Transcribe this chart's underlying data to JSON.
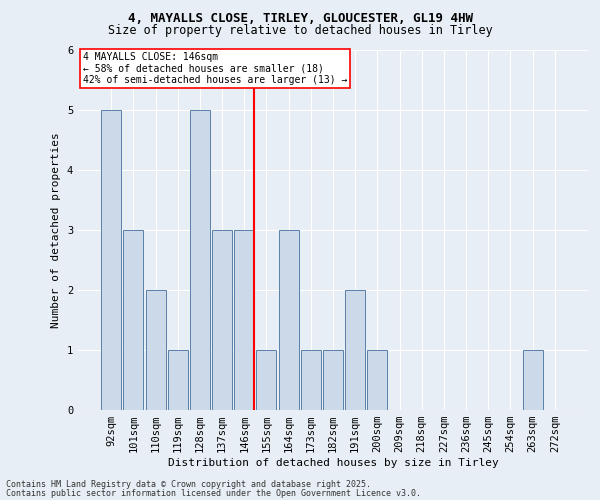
{
  "title": "4, MAYALLS CLOSE, TIRLEY, GLOUCESTER, GL19 4HW",
  "subtitle": "Size of property relative to detached houses in Tirley",
  "xlabel": "Distribution of detached houses by size in Tirley",
  "ylabel": "Number of detached properties",
  "footnote1": "Contains HM Land Registry data © Crown copyright and database right 2025.",
  "footnote2": "Contains public sector information licensed under the Open Government Licence v3.0.",
  "categories": [
    "92sqm",
    "101sqm",
    "110sqm",
    "119sqm",
    "128sqm",
    "137sqm",
    "146sqm",
    "155sqm",
    "164sqm",
    "173sqm",
    "182sqm",
    "191sqm",
    "200sqm",
    "209sqm",
    "218sqm",
    "227sqm",
    "236sqm",
    "245sqm",
    "254sqm",
    "263sqm",
    "272sqm"
  ],
  "values": [
    5,
    3,
    2,
    1,
    5,
    3,
    3,
    1,
    3,
    1,
    1,
    2,
    1,
    0,
    0,
    0,
    0,
    0,
    0,
    1,
    0
  ],
  "bar_color": "#ccd9e8",
  "bar_edge_color": "#5a80a8",
  "highlight_line_index": 6,
  "highlight_line_color": "red",
  "annotation_title": "4 MAYALLS CLOSE: 146sqm",
  "annotation_line1": "← 58% of detached houses are smaller (18)",
  "annotation_line2": "42% of semi-detached houses are larger (13) →",
  "annotation_box_color": "white",
  "annotation_box_edge": "red",
  "ylim": [
    0,
    6
  ],
  "yticks": [
    0,
    1,
    2,
    3,
    4,
    5,
    6
  ],
  "background_color": "#e8eef5",
  "plot_background": "#e8eef5",
  "title_fontsize": 9,
  "subtitle_fontsize": 8.5,
  "ylabel_fontsize": 8,
  "xlabel_fontsize": 8,
  "tick_fontsize": 7.5,
  "annotation_fontsize": 7,
  "footnote_fontsize": 6
}
